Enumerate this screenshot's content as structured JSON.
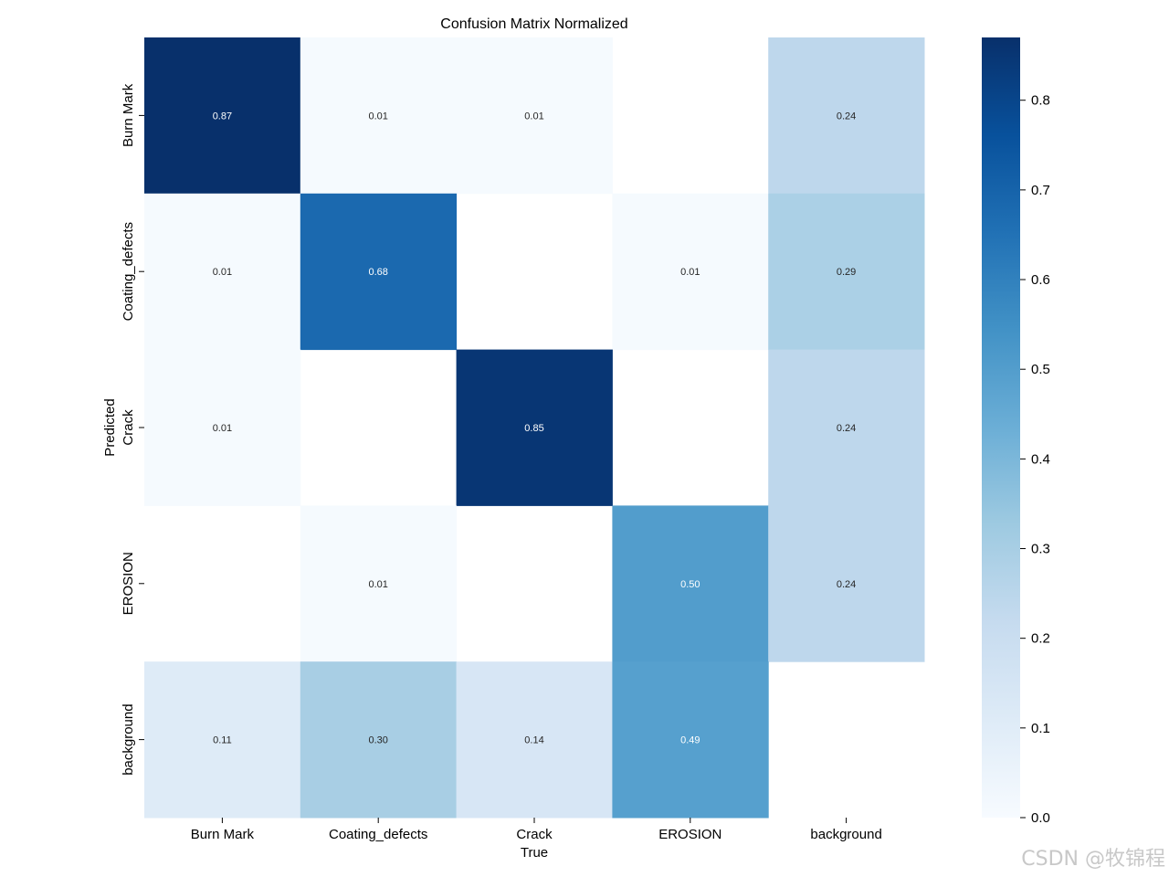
{
  "chart_data": {
    "type": "heatmap",
    "title": "Confusion Matrix Normalized",
    "xlabel": "True",
    "ylabel": "Predicted",
    "x_categories": [
      "Burn Mark",
      "Coating_defects",
      "Crack",
      "EROSION",
      "background"
    ],
    "y_categories": [
      "Burn Mark",
      "Coating_defects",
      "Crack",
      "EROSION",
      "background"
    ],
    "values": [
      [
        0.87,
        0.01,
        0.01,
        null,
        0.24
      ],
      [
        0.01,
        0.68,
        null,
        0.01,
        0.29
      ],
      [
        0.01,
        null,
        0.85,
        null,
        0.24
      ],
      [
        null,
        0.01,
        null,
        0.5,
        0.24
      ],
      [
        0.11,
        0.3,
        0.14,
        0.49,
        null
      ]
    ],
    "colormap": "Blues",
    "vmin": 0.0,
    "vmax": 0.87,
    "colorbar_ticks": [
      "0.0",
      "0.1",
      "0.2",
      "0.3",
      "0.4",
      "0.5",
      "0.6",
      "0.7",
      "0.8"
    ],
    "annotation_format": "0.00"
  },
  "watermark": "CSDN @牧锦程"
}
